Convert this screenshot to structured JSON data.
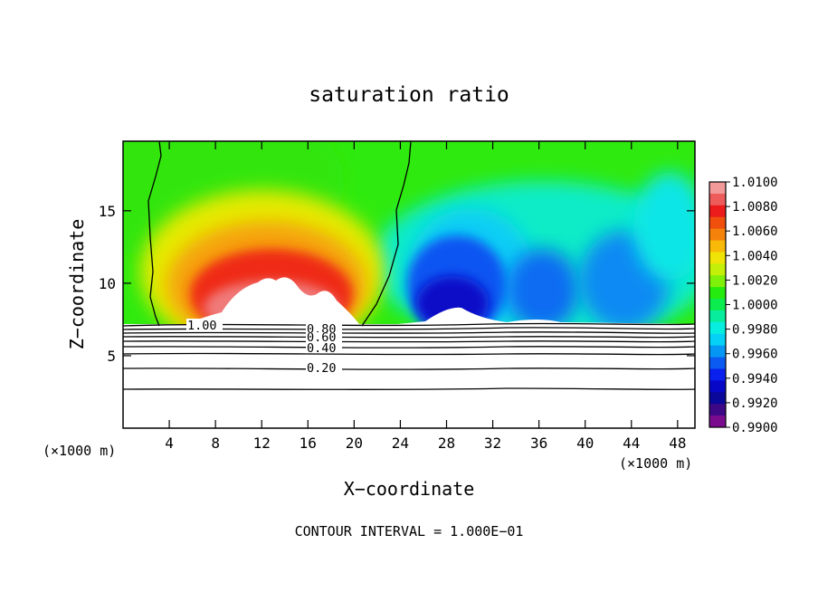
{
  "chart_data": {
    "type": "heatmap",
    "title": "saturation ratio",
    "xlabel": "X−coordinate",
    "ylabel": "Z−coordinate",
    "x_unit_left": "(×1000 m)",
    "x_unit_right": "(×1000 m)",
    "xlim": [
      0,
      49.5
    ],
    "ylim": [
      0,
      19.8
    ],
    "x_ticks": [
      4,
      8,
      12,
      16,
      20,
      24,
      28,
      32,
      36,
      40,
      44,
      48
    ],
    "y_ticks": [
      5,
      10,
      15
    ],
    "colorbar": {
      "min": 0.99,
      "max": 1.01,
      "tick_labels": [
        "1.0100",
        "1.0080",
        "1.0060",
        "1.0040",
        "1.0020",
        "1.0000",
        "0.9980",
        "0.9960",
        "0.9940",
        "0.9920",
        "0.9900"
      ],
      "colors": [
        "#f29a9a",
        "#ee5b5b",
        "#ec1c1c",
        "#f04f0e",
        "#f5820a",
        "#f8b909",
        "#f0e406",
        "#c4ef08",
        "#7ef00a",
        "#26eb0e",
        "#0bec4f",
        "#08ec9d",
        "#07eee0",
        "#05d1f6",
        "#0696f4",
        "#0b5bf2",
        "#0920ee",
        "#0707c8",
        "#0a089a",
        "#3d0886",
        "#7a0a8e"
      ]
    },
    "contour_labels": [
      "1.00",
      "0.80",
      "0.60",
      "0.40",
      "0.20"
    ],
    "contour_interval_text": "CONTOUR INTERVAL = 1.000E−01",
    "field_features": [
      {
        "name": "supersaturated core",
        "x": 13.5,
        "z": 13.5,
        "value": 1.007
      },
      {
        "name": "subsaturated core",
        "x": 29.5,
        "z": 9.5,
        "value": 0.992
      },
      {
        "name": "subsaturated lobe",
        "x": 38.5,
        "z": 12,
        "value": 0.996
      }
    ],
    "cloud_boundary_contour": {
      "value": 1.0,
      "left_edge": [
        [
          3.2,
          19.8
        ],
        [
          2.6,
          17
        ],
        [
          2.4,
          15
        ],
        [
          2.7,
          13
        ],
        [
          2.5,
          10
        ],
        [
          2.7,
          7.2
        ]
      ],
      "right_edge": [
        [
          25,
          19.8
        ],
        [
          24.8,
          17
        ],
        [
          23.6,
          15
        ],
        [
          23.2,
          12
        ],
        [
          22,
          9
        ],
        [
          20.4,
          7.2
        ]
      ]
    }
  }
}
